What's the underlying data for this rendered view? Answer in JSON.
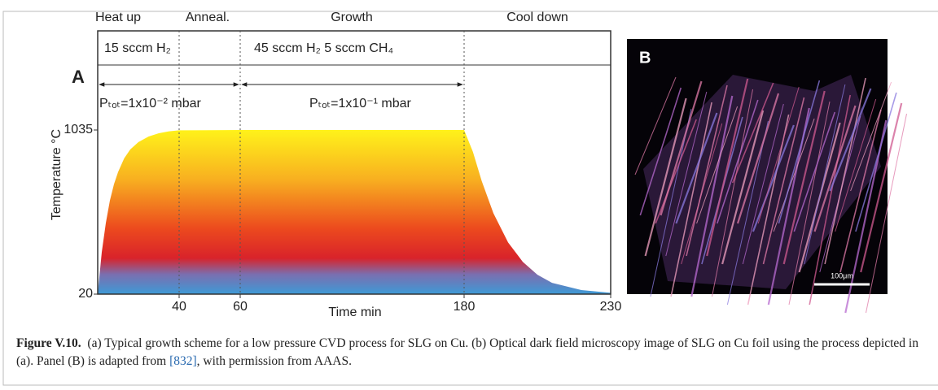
{
  "chart_data": {
    "type": "area",
    "panel_label": "A",
    "x_label": "Time min",
    "y_label": "Temperature °C",
    "x": [
      0,
      2,
      4,
      6,
      8,
      10,
      13,
      16,
      20,
      25,
      30,
      35,
      40,
      60,
      180,
      183,
      186,
      190,
      195,
      200,
      205,
      210,
      220,
      230
    ],
    "y": [
      20,
      280,
      460,
      600,
      700,
      775,
      860,
      915,
      960,
      995,
      1015,
      1027,
      1033,
      1035,
      1035,
      900,
      720,
      520,
      340,
      220,
      140,
      90,
      45,
      28
    ],
    "xlim": [
      0,
      230
    ],
    "xticks": [
      40,
      60,
      180,
      230
    ],
    "ylim": [
      20,
      1035
    ],
    "yticks": [
      20,
      1035
    ],
    "phases": [
      "Heat up",
      "Anneal.",
      "Growth",
      "Cool down"
    ],
    "gas": [
      "15 sccm H₂",
      "45 sccm H₂ 5 sccm CH₄"
    ],
    "pressure": [
      "Pₜₒₜ=1x10⁻² mbar",
      "Pₜₒₜ=1x10⁻¹ mbar"
    ]
  },
  "image_panel": {
    "panel_label": "B",
    "scale_bar": "100μm"
  },
  "caption": {
    "label": "Figure V.10.",
    "text_before": "(a) Typical growth scheme for a low pressure CVD process for SLG on Cu. (b) Optical dark field microscopy image of SLG on Cu foil using the process depicted in (a). Panel (B) is adapted from ",
    "ref": "[832]",
    "text_after": ", with permission from AAAS."
  }
}
